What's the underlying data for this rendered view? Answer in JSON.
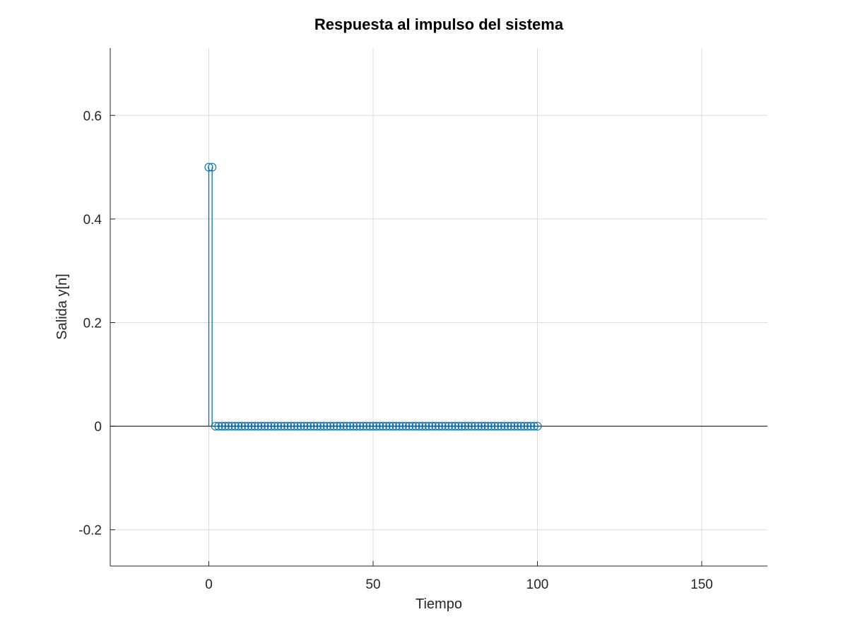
{
  "chart_data": {
    "type": "stem",
    "title": "Respuesta al impulso del sistema",
    "xlabel": "Tiempo",
    "ylabel": "Salida y[n]",
    "xlim": [
      -30,
      170
    ],
    "ylim": [
      -0.27,
      0.73
    ],
    "xticks": [
      0,
      50,
      100,
      150
    ],
    "yticks": [
      -0.2,
      0,
      0.2,
      0.4,
      0.6
    ],
    "xtick_labels": [
      "0",
      "50",
      "100",
      "150"
    ],
    "ytick_labels": [
      "-0.2",
      "0",
      "0.2",
      "0.4",
      "0.6"
    ],
    "grid": true,
    "color": "#0072bd",
    "marker": "circle-open",
    "baseline": 0,
    "series": [
      {
        "x": [
          0,
          1,
          2,
          3,
          4,
          5,
          6,
          7,
          8,
          9,
          10,
          11,
          12,
          13,
          14,
          15,
          16,
          17,
          18,
          19,
          20,
          21,
          22,
          23,
          24,
          25,
          26,
          27,
          28,
          29,
          30,
          31,
          32,
          33,
          34,
          35,
          36,
          37,
          38,
          39,
          40,
          41,
          42,
          43,
          44,
          45,
          46,
          47,
          48,
          49,
          50,
          51,
          52,
          53,
          54,
          55,
          56,
          57,
          58,
          59,
          60,
          61,
          62,
          63,
          64,
          65,
          66,
          67,
          68,
          69,
          70,
          71,
          72,
          73,
          74,
          75,
          76,
          77,
          78,
          79,
          80,
          81,
          82,
          83,
          84,
          85,
          86,
          87,
          88,
          89,
          90,
          91,
          92,
          93,
          94,
          95,
          96,
          97,
          98,
          99,
          100
        ],
        "y": [
          0.5,
          0.5,
          0,
          0,
          0,
          0,
          0,
          0,
          0,
          0,
          0,
          0,
          0,
          0,
          0,
          0,
          0,
          0,
          0,
          0,
          0,
          0,
          0,
          0,
          0,
          0,
          0,
          0,
          0,
          0,
          0,
          0,
          0,
          0,
          0,
          0,
          0,
          0,
          0,
          0,
          0,
          0,
          0,
          0,
          0,
          0,
          0,
          0,
          0,
          0,
          0,
          0,
          0,
          0,
          0,
          0,
          0,
          0,
          0,
          0,
          0,
          0,
          0,
          0,
          0,
          0,
          0,
          0,
          0,
          0,
          0,
          0,
          0,
          0,
          0,
          0,
          0,
          0,
          0,
          0,
          0,
          0,
          0,
          0,
          0,
          0,
          0,
          0,
          0,
          0,
          0,
          0,
          0,
          0,
          0,
          0,
          0,
          0,
          0,
          0,
          0
        ]
      }
    ]
  }
}
